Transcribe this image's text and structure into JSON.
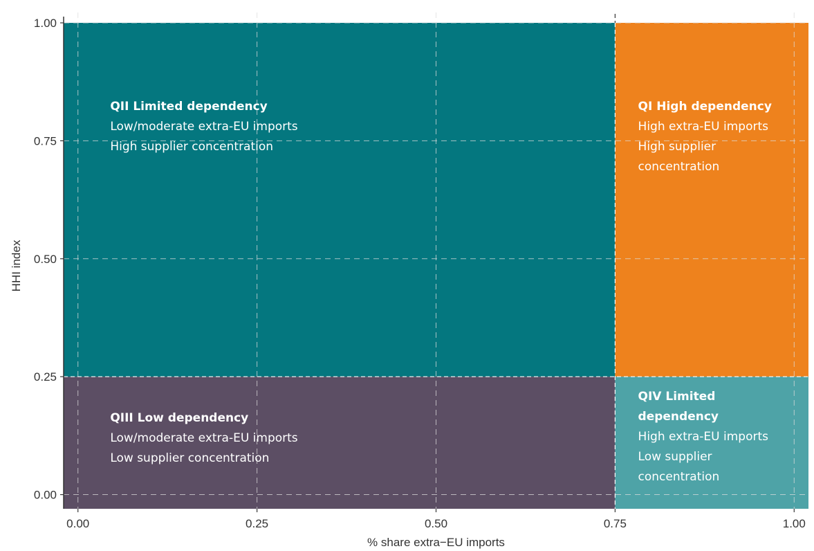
{
  "chart_data": {
    "type": "quadrant",
    "xlabel": "% share extra−EU imports",
    "ylabel": "HHI index",
    "xlim": [
      -0.02,
      1.02
    ],
    "ylim": [
      -0.03,
      1.0
    ],
    "x_ticks": [
      0.0,
      0.25,
      0.5,
      0.75,
      1.0
    ],
    "x_tick_labels": [
      "0.00",
      "0.25",
      "0.50",
      "0.75",
      "1.00"
    ],
    "y_ticks": [
      0.0,
      0.25,
      0.5,
      0.75,
      1.0
    ],
    "y_tick_labels": [
      "0.00",
      "0.25",
      "0.50",
      "0.75",
      "1.00"
    ],
    "x_threshold": 0.75,
    "y_threshold": 0.25,
    "grid": true,
    "quadrants": [
      {
        "id": "q2",
        "x_range": [
          -0.02,
          0.75
        ],
        "y_range": [
          0.25,
          1.0
        ],
        "color": "#04777F",
        "title": "QII Limited dependency",
        "lines": [
          "Low/moderate extra-EU imports",
          "High supplier concentration"
        ],
        "label_anchor": [
          0.045,
          0.815
        ]
      },
      {
        "id": "q1",
        "x_range": [
          0.75,
          1.02
        ],
        "y_range": [
          0.25,
          1.0
        ],
        "color": "#EE821D",
        "title_lines": [
          "QI High dependency"
        ],
        "lines": [
          "High extra-EU imports",
          "High supplier",
          "concentration"
        ],
        "label_anchor": [
          0.782,
          0.815
        ]
      },
      {
        "id": "q3",
        "x_range": [
          -0.02,
          0.75
        ],
        "y_range": [
          -0.03,
          0.25
        ],
        "color": "#5C4E64",
        "title": "QIII Low dependency",
        "lines": [
          "Low/moderate extra-EU imports",
          "Low supplier concentration"
        ],
        "label_anchor": [
          0.045,
          0.155
        ]
      },
      {
        "id": "q4",
        "x_range": [
          0.75,
          1.02
        ],
        "y_range": [
          -0.03,
          0.25
        ],
        "color": "#4EA3A7",
        "title_lines": [
          "QIV Limited",
          "dependency"
        ],
        "lines": [
          "High extra-EU imports",
          "Low supplier",
          "concentration"
        ],
        "label_anchor": [
          0.782,
          0.2
        ]
      }
    ]
  }
}
